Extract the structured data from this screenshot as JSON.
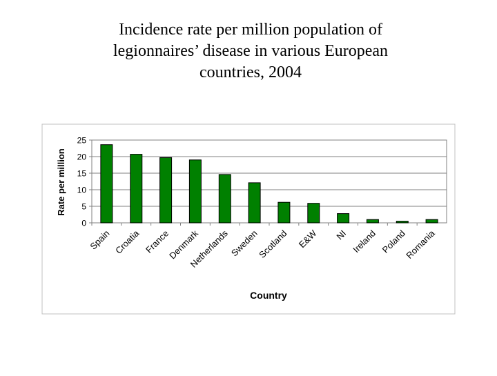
{
  "title_lines": [
    "Incidence rate per million population of",
    "legionnaires’ disease in various European",
    "countries, 2004"
  ],
  "chart_data": {
    "type": "bar",
    "categories": [
      "Spain",
      "Croatia",
      "France",
      "Denmark",
      "Netherlands",
      "Sweden",
      "Scotland",
      "E&W",
      "NI",
      "Ireland",
      "Poland",
      "Romania"
    ],
    "values": [
      23.6,
      20.7,
      19.7,
      19.0,
      14.6,
      12.1,
      6.2,
      5.9,
      2.8,
      1.0,
      0.5,
      1.0
    ],
    "xlabel": "Country",
    "ylabel": "Rate per million",
    "ylim": [
      0,
      25
    ],
    "yticks": [
      "0",
      "5",
      "10",
      "15",
      "20",
      "25"
    ],
    "grid": true,
    "legend": "none",
    "bar_color": "#008000"
  }
}
